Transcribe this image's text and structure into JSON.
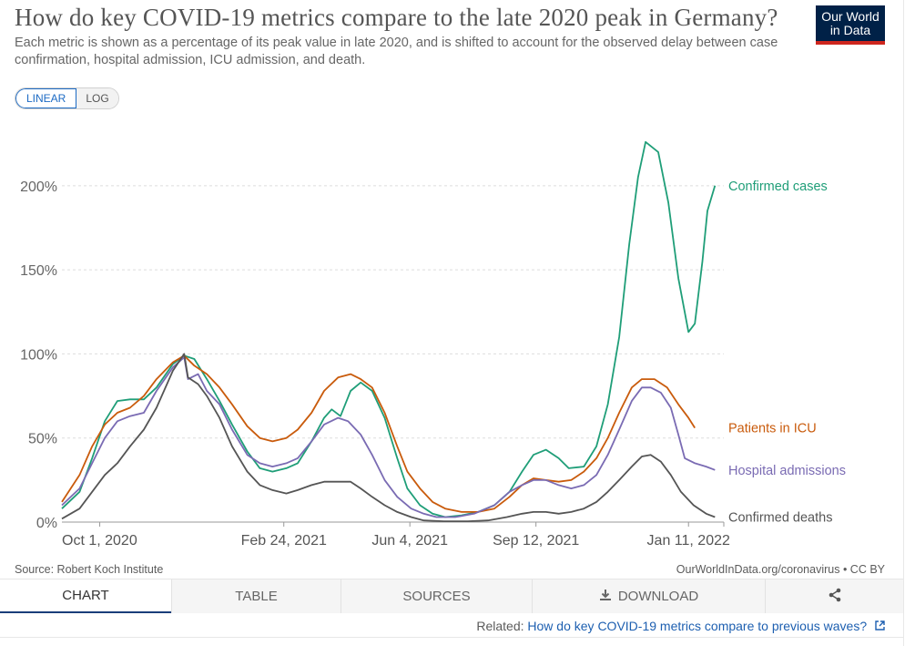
{
  "header": {
    "title": "How do key COVID-19 metrics compare to the late 2020 peak in Germany?",
    "subtitle": "Each metric is shown as a percentage of its peak value in late 2020, and is shifted to account for the observed delay between case confirmation, hospital admission, ICU admission, and death.",
    "logo_line1": "Our World",
    "logo_line2": "in Data",
    "brand_color": "#002147",
    "brand_accent": "#ce261e"
  },
  "controls": {
    "linear_label": "LINEAR",
    "log_label": "LOG",
    "selected": "LINEAR"
  },
  "chart_data": {
    "type": "line",
    "title": "How do key COVID-19 metrics compare to the late 2020 peak in Germany?",
    "x_type": "date",
    "xlim": [
      "2020-09-01",
      "2022-02-08"
    ],
    "ylim": [
      0,
      240
    ],
    "yticks": [
      0,
      50,
      100,
      150,
      200
    ],
    "ytick_labels": [
      "0%",
      "50%",
      "100%",
      "150%",
      "200%"
    ],
    "xticks": [
      "2020-10-01",
      "2021-02-24",
      "2021-06-04",
      "2021-09-12",
      "2022-01-11"
    ],
    "xtick_labels": [
      "Oct 1, 2020",
      "Feb 24, 2021",
      "Jun 4, 2021",
      "Sep 12, 2021",
      "Jan 11, 2022"
    ],
    "grid": "horizontal dashed",
    "legend": "inline labels at line ends (right)",
    "series": [
      {
        "name": "Confirmed cases",
        "color": "#1f9e78",
        "points": [
          [
            "2020-09-01",
            8
          ],
          [
            "2020-09-15",
            18
          ],
          [
            "2020-09-25",
            38
          ],
          [
            "2020-10-05",
            60
          ],
          [
            "2020-10-15",
            72
          ],
          [
            "2020-10-25",
            73
          ],
          [
            "2020-11-05",
            73
          ],
          [
            "2020-11-15",
            80
          ],
          [
            "2020-11-28",
            94
          ],
          [
            "2020-12-07",
            99
          ],
          [
            "2020-12-15",
            97
          ],
          [
            "2020-12-25",
            85
          ],
          [
            "2021-01-04",
            72
          ],
          [
            "2021-01-14",
            58
          ],
          [
            "2021-01-26",
            42
          ],
          [
            "2021-02-05",
            32
          ],
          [
            "2021-02-15",
            30
          ],
          [
            "2021-02-26",
            32
          ],
          [
            "2021-03-07",
            35
          ],
          [
            "2021-03-18",
            48
          ],
          [
            "2021-03-28",
            62
          ],
          [
            "2021-04-03",
            67
          ],
          [
            "2021-04-10",
            63
          ],
          [
            "2021-04-18",
            78
          ],
          [
            "2021-04-26",
            83
          ],
          [
            "2021-05-05",
            78
          ],
          [
            "2021-05-15",
            62
          ],
          [
            "2021-05-25",
            38
          ],
          [
            "2021-06-02",
            20
          ],
          [
            "2021-06-12",
            10
          ],
          [
            "2021-06-22",
            5
          ],
          [
            "2021-07-02",
            3
          ],
          [
            "2021-07-15",
            4
          ],
          [
            "2021-07-28",
            6
          ],
          [
            "2021-08-10",
            10
          ],
          [
            "2021-08-22",
            18
          ],
          [
            "2021-09-01",
            30
          ],
          [
            "2021-09-10",
            40
          ],
          [
            "2021-09-20",
            43
          ],
          [
            "2021-09-30",
            38
          ],
          [
            "2021-10-08",
            32
          ],
          [
            "2021-10-20",
            33
          ],
          [
            "2021-10-30",
            45
          ],
          [
            "2021-11-08",
            70
          ],
          [
            "2021-11-17",
            110
          ],
          [
            "2021-11-25",
            165
          ],
          [
            "2021-12-02",
            205
          ],
          [
            "2021-12-08",
            226
          ],
          [
            "2021-12-18",
            220
          ],
          [
            "2021-12-26",
            190
          ],
          [
            "2022-01-03",
            145
          ],
          [
            "2022-01-11",
            113
          ],
          [
            "2022-01-16",
            118
          ],
          [
            "2022-01-22",
            155
          ],
          [
            "2022-01-26",
            185
          ],
          [
            "2022-02-01",
            200
          ]
        ]
      },
      {
        "name": "Patients in ICU",
        "color": "#c95b0c",
        "points": [
          [
            "2020-09-01",
            12
          ],
          [
            "2020-09-15",
            28
          ],
          [
            "2020-09-25",
            45
          ],
          [
            "2020-10-05",
            58
          ],
          [
            "2020-10-15",
            65
          ],
          [
            "2020-10-25",
            68
          ],
          [
            "2020-11-05",
            75
          ],
          [
            "2020-11-15",
            85
          ],
          [
            "2020-11-28",
            95
          ],
          [
            "2020-12-07",
            99
          ],
          [
            "2020-12-15",
            93
          ],
          [
            "2020-12-25",
            88
          ],
          [
            "2021-01-04",
            80
          ],
          [
            "2021-01-14",
            70
          ],
          [
            "2021-01-26",
            57
          ],
          [
            "2021-02-05",
            50
          ],
          [
            "2021-02-15",
            48
          ],
          [
            "2021-02-26",
            50
          ],
          [
            "2021-03-07",
            55
          ],
          [
            "2021-03-18",
            65
          ],
          [
            "2021-03-28",
            78
          ],
          [
            "2021-04-08",
            86
          ],
          [
            "2021-04-18",
            88
          ],
          [
            "2021-04-26",
            85
          ],
          [
            "2021-05-05",
            80
          ],
          [
            "2021-05-15",
            65
          ],
          [
            "2021-05-25",
            45
          ],
          [
            "2021-06-02",
            30
          ],
          [
            "2021-06-12",
            20
          ],
          [
            "2021-06-22",
            12
          ],
          [
            "2021-07-02",
            8
          ],
          [
            "2021-07-15",
            6
          ],
          [
            "2021-07-28",
            6
          ],
          [
            "2021-08-10",
            8
          ],
          [
            "2021-08-22",
            15
          ],
          [
            "2021-09-01",
            22
          ],
          [
            "2021-09-10",
            26
          ],
          [
            "2021-09-20",
            25
          ],
          [
            "2021-09-30",
            24
          ],
          [
            "2021-10-10",
            25
          ],
          [
            "2021-10-20",
            30
          ],
          [
            "2021-10-30",
            38
          ],
          [
            "2021-11-08",
            50
          ],
          [
            "2021-11-17",
            65
          ],
          [
            "2021-11-27",
            80
          ],
          [
            "2021-12-05",
            85
          ],
          [
            "2021-12-15",
            85
          ],
          [
            "2021-12-25",
            80
          ],
          [
            "2022-01-03",
            70
          ],
          [
            "2022-01-11",
            62
          ],
          [
            "2022-01-16",
            56
          ]
        ]
      },
      {
        "name": "Hospital admissions",
        "color": "#7a6bb3",
        "points": [
          [
            "2020-09-01",
            10
          ],
          [
            "2020-09-15",
            20
          ],
          [
            "2020-09-25",
            35
          ],
          [
            "2020-10-05",
            50
          ],
          [
            "2020-10-15",
            60
          ],
          [
            "2020-10-25",
            63
          ],
          [
            "2020-11-05",
            65
          ],
          [
            "2020-11-15",
            78
          ],
          [
            "2020-11-28",
            92
          ],
          [
            "2020-12-07",
            98
          ],
          [
            "2020-12-10",
            85
          ],
          [
            "2020-12-18",
            88
          ],
          [
            "2020-12-25",
            78
          ],
          [
            "2021-01-04",
            70
          ],
          [
            "2021-01-14",
            55
          ],
          [
            "2021-01-26",
            40
          ],
          [
            "2021-02-05",
            35
          ],
          [
            "2021-02-15",
            33
          ],
          [
            "2021-02-26",
            35
          ],
          [
            "2021-03-07",
            38
          ],
          [
            "2021-03-18",
            48
          ],
          [
            "2021-03-28",
            58
          ],
          [
            "2021-04-08",
            62
          ],
          [
            "2021-04-16",
            60
          ],
          [
            "2021-04-26",
            52
          ],
          [
            "2021-05-05",
            40
          ],
          [
            "2021-05-15",
            25
          ],
          [
            "2021-05-25",
            15
          ],
          [
            "2021-06-05",
            8
          ],
          [
            "2021-06-15",
            5
          ],
          [
            "2021-06-25",
            3
          ],
          [
            "2021-07-10",
            3
          ],
          [
            "2021-07-25",
            5
          ],
          [
            "2021-08-10",
            10
          ],
          [
            "2021-08-22",
            18
          ],
          [
            "2021-09-01",
            22
          ],
          [
            "2021-09-10",
            25
          ],
          [
            "2021-09-20",
            25
          ],
          [
            "2021-09-30",
            22
          ],
          [
            "2021-10-10",
            20
          ],
          [
            "2021-10-20",
            22
          ],
          [
            "2021-10-30",
            28
          ],
          [
            "2021-11-08",
            40
          ],
          [
            "2021-11-17",
            55
          ],
          [
            "2021-11-27",
            72
          ],
          [
            "2021-12-05",
            80
          ],
          [
            "2021-12-12",
            80
          ],
          [
            "2021-12-20",
            77
          ],
          [
            "2021-12-28",
            68
          ],
          [
            "2022-01-03",
            52
          ],
          [
            "2022-01-08",
            38
          ],
          [
            "2022-01-16",
            35
          ],
          [
            "2022-01-25",
            33
          ],
          [
            "2022-02-01",
            31
          ]
        ]
      },
      {
        "name": "Confirmed deaths",
        "color": "#555555",
        "points": [
          [
            "2020-09-01",
            2
          ],
          [
            "2020-09-15",
            8
          ],
          [
            "2020-09-25",
            18
          ],
          [
            "2020-10-05",
            28
          ],
          [
            "2020-10-15",
            35
          ],
          [
            "2020-10-25",
            45
          ],
          [
            "2020-11-05",
            55
          ],
          [
            "2020-11-15",
            68
          ],
          [
            "2020-11-28",
            90
          ],
          [
            "2020-12-07",
            100
          ],
          [
            "2020-12-10",
            86
          ],
          [
            "2020-12-18",
            82
          ],
          [
            "2020-12-25",
            75
          ],
          [
            "2021-01-04",
            62
          ],
          [
            "2021-01-14",
            45
          ],
          [
            "2021-01-26",
            30
          ],
          [
            "2021-02-05",
            22
          ],
          [
            "2021-02-15",
            19
          ],
          [
            "2021-02-26",
            17
          ],
          [
            "2021-03-07",
            19
          ],
          [
            "2021-03-18",
            22
          ],
          [
            "2021-03-28",
            24
          ],
          [
            "2021-04-08",
            24
          ],
          [
            "2021-04-18",
            24
          ],
          [
            "2021-04-26",
            20
          ],
          [
            "2021-05-05",
            15
          ],
          [
            "2021-05-15",
            10
          ],
          [
            "2021-05-25",
            6
          ],
          [
            "2021-06-05",
            3
          ],
          [
            "2021-06-15",
            1
          ],
          [
            "2021-07-01",
            0.5
          ],
          [
            "2021-07-20",
            0.5
          ],
          [
            "2021-08-05",
            1
          ],
          [
            "2021-08-20",
            3
          ],
          [
            "2021-09-01",
            5
          ],
          [
            "2021-09-10",
            6
          ],
          [
            "2021-09-20",
            6
          ],
          [
            "2021-09-30",
            5
          ],
          [
            "2021-10-10",
            6
          ],
          [
            "2021-10-20",
            8
          ],
          [
            "2021-10-30",
            12
          ],
          [
            "2021-11-08",
            18
          ],
          [
            "2021-11-17",
            25
          ],
          [
            "2021-11-27",
            33
          ],
          [
            "2021-12-05",
            39
          ],
          [
            "2021-12-12",
            40
          ],
          [
            "2021-12-20",
            36
          ],
          [
            "2021-12-28",
            28
          ],
          [
            "2022-01-05",
            18
          ],
          [
            "2022-01-15",
            10
          ],
          [
            "2022-01-25",
            5
          ],
          [
            "2022-02-01",
            3
          ]
        ]
      }
    ]
  },
  "footer": {
    "source": "Source: Robert Koch Institute",
    "credit": "OurWorldInData.org/coronavirus • CC BY",
    "related_prefix": "Related:",
    "related_link": "How do key COVID-19 metrics compare to previous waves?",
    "link_color": "#1d5fb0"
  },
  "tabs": {
    "chart": "CHART",
    "table": "TABLE",
    "sources": "SOURCES",
    "download": "DOWNLOAD",
    "download_icon": "download-icon",
    "share_icon": "share-icon"
  }
}
